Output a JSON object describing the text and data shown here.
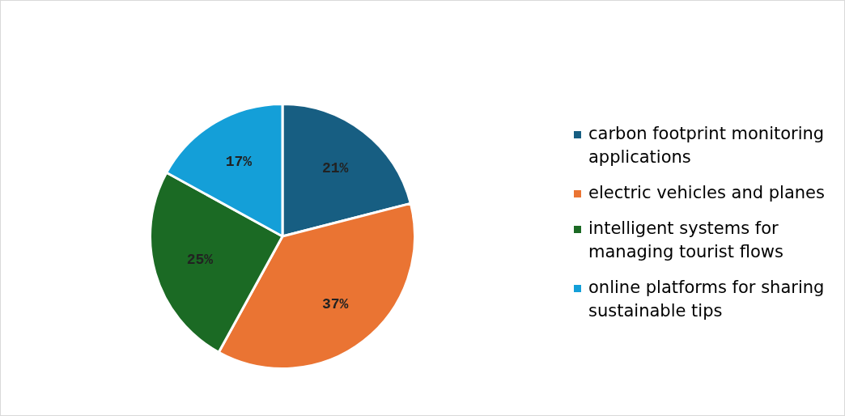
{
  "chart_data": {
    "type": "pie",
    "categories": [
      "carbon footprint monitoring applications",
      "electric vehicles and planes",
      "intelligent systems for managing tourist flows",
      "online platforms for sharing sustainable tips"
    ],
    "values": [
      21,
      37,
      25,
      17
    ],
    "value_labels": [
      "21%",
      "37%",
      "25%",
      "17%"
    ],
    "colors": [
      "#175e82",
      "#ea7433",
      "#1b6a24",
      "#149fd8"
    ],
    "legend": "right"
  }
}
